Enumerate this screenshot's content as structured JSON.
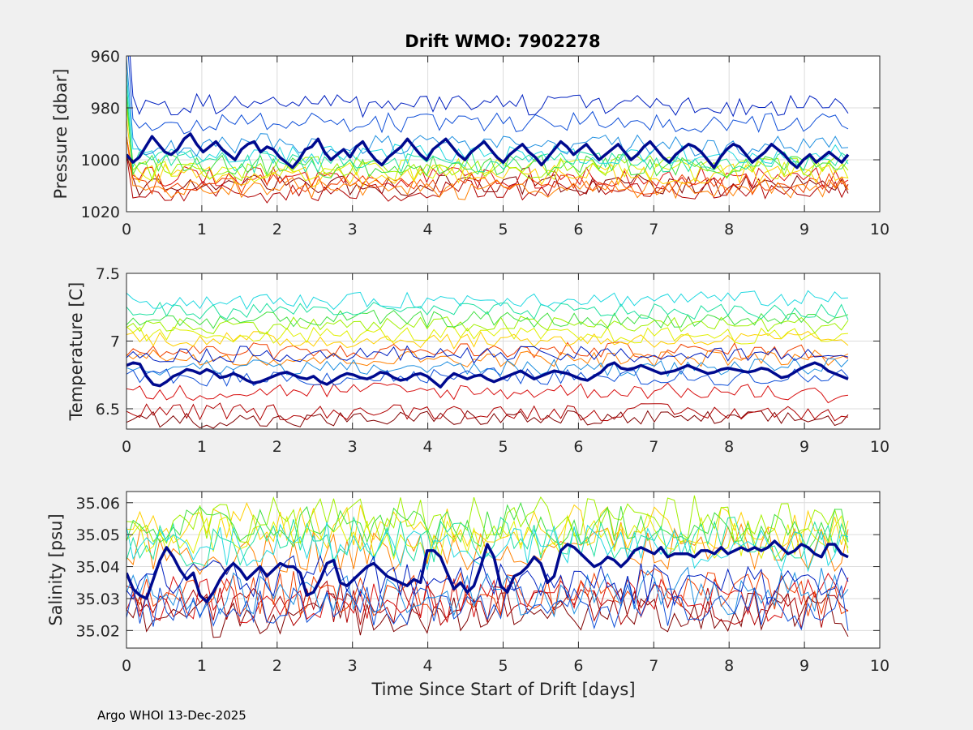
{
  "title": "Drift WMO: 7902278",
  "footer": "Argo WHOI 13-Dec-2025",
  "colors": {
    "background": "#f0f0f0",
    "axes": "#ffffff",
    "grid": "#dcdcdc",
    "mean_line": "#000a8f",
    "series_palette": [
      "#800000",
      "#b00000",
      "#d81010",
      "#f04000",
      "#ff8000",
      "#ffd000",
      "#e0f000",
      "#a0f000",
      "#40e040",
      "#20e0a0",
      "#20d8e0",
      "#2090e0",
      "#1050d8",
      "#0020c0"
    ]
  },
  "chart_data": [
    {
      "type": "line",
      "name": "pressure",
      "ylabel": "Pressure [dbar]",
      "xlabel": "",
      "x_range": [
        0,
        10
      ],
      "y_range": [
        960,
        1020
      ],
      "y_reversed": true,
      "x_ticks": [
        "0",
        "1",
        "2",
        "3",
        "4",
        "5",
        "6",
        "7",
        "8",
        "9",
        "10"
      ],
      "y_ticks": [
        "960",
        "980",
        "1000",
        "1020"
      ],
      "grid": true,
      "series_bands": [
        1010,
        1012,
        1007,
        1009,
        1011,
        1006,
        1004,
        1003,
        1002,
        1000,
        998,
        995,
        986,
        979
      ],
      "noise": 4,
      "mean_series": [
        998,
        1001,
        999,
        995,
        991,
        994,
        997,
        998,
        996,
        992,
        990,
        994,
        997,
        995,
        993,
        996,
        998,
        1000,
        996,
        994,
        993,
        997,
        995,
        996,
        999,
        1001,
        1003,
        1000,
        996,
        995,
        992,
        997,
        1000,
        998,
        996,
        999,
        995,
        993,
        997,
        1000,
        1002,
        999,
        997,
        995,
        992,
        995,
        998,
        1000,
        996,
        994,
        992,
        995,
        998,
        1000,
        997,
        995,
        993,
        996,
        999,
        1001,
        998,
        996,
        994,
        997,
        999,
        1002,
        999,
        996,
        993,
        995,
        998,
        996,
        994,
        997,
        1000,
        998,
        996,
        994,
        997,
        1000,
        998,
        995,
        993,
        996,
        999,
        1001,
        998,
        996,
        994,
        995,
        997,
        1000,
        1003,
        999,
        996,
        994,
        995,
        998,
        1001,
        999,
        997,
        994,
        996,
        998,
        1001,
        1003,
        1000,
        998,
        1001,
        999,
        997,
        999,
        1001,
        998
      ]
    },
    {
      "type": "line",
      "name": "temperature",
      "ylabel": "Temperature [C]",
      "xlabel": "",
      "x_range": [
        0,
        10
      ],
      "y_range": [
        6.35,
        7.5
      ],
      "y_reversed": false,
      "x_ticks": [
        "0",
        "1",
        "2",
        "3",
        "4",
        "5",
        "6",
        "7",
        "8",
        "9",
        "10"
      ],
      "y_ticks": [
        "6.5",
        "7",
        "7.5"
      ],
      "grid": true,
      "series_bands": [
        6.42,
        6.48,
        6.62,
        6.92,
        6.88,
        7.02,
        7.05,
        7.12,
        7.15,
        7.22,
        7.3,
        6.8,
        6.74,
        6.9
      ],
      "noise": 0.06,
      "mean_series": [
        6.82,
        6.84,
        6.83,
        6.74,
        6.68,
        6.67,
        6.7,
        6.74,
        6.76,
        6.79,
        6.78,
        6.76,
        6.79,
        6.77,
        6.73,
        6.74,
        6.76,
        6.74,
        6.71,
        6.69,
        6.7,
        6.72,
        6.74,
        6.76,
        6.77,
        6.75,
        6.73,
        6.72,
        6.74,
        6.7,
        6.68,
        6.71,
        6.74,
        6.76,
        6.75,
        6.73,
        6.72,
        6.74,
        6.77,
        6.76,
        6.73,
        6.71,
        6.72,
        6.75,
        6.76,
        6.74,
        6.7,
        6.66,
        6.72,
        6.76,
        6.74,
        6.72,
        6.74,
        6.75,
        6.72,
        6.7,
        6.72,
        6.74,
        6.76,
        6.78,
        6.75,
        6.72,
        6.74,
        6.76,
        6.78,
        6.77,
        6.76,
        6.74,
        6.72,
        6.71,
        6.74,
        6.77,
        6.82,
        6.84,
        6.8,
        6.79,
        6.8,
        6.82,
        6.8,
        6.78,
        6.76,
        6.77,
        6.78,
        6.8,
        6.82,
        6.8,
        6.78,
        6.76,
        6.77,
        6.79,
        6.8,
        6.79,
        6.78,
        6.77,
        6.78,
        6.8,
        6.79,
        6.76,
        6.73,
        6.74,
        6.77,
        6.8,
        6.82,
        6.84,
        6.82,
        6.78,
        6.76,
        6.74,
        6.72
      ]
    },
    {
      "type": "line",
      "name": "salinity",
      "ylabel": "Salinity [psu]",
      "xlabel": "Time Since Start of Drift [days]",
      "x_range": [
        0,
        10
      ],
      "y_range": [
        35.0145,
        35.0635
      ],
      "y_reversed": false,
      "x_ticks": [
        "0",
        "1",
        "2",
        "3",
        "4",
        "5",
        "6",
        "7",
        "8",
        "9",
        "10"
      ],
      "y_ticks": [
        "35.02",
        "35.03",
        "35.04",
        "35.05",
        "35.06"
      ],
      "grid": true,
      "series_bands": [
        35.025,
        35.028,
        35.03,
        35.032,
        35.045,
        35.052,
        35.05,
        35.054,
        35.052,
        35.048,
        35.046,
        35.032,
        35.028,
        35.036
      ],
      "noise": 0.007,
      "mean_series": [
        35.038,
        35.033,
        35.031,
        35.03,
        35.036,
        35.042,
        35.046,
        35.043,
        35.039,
        35.036,
        35.038,
        35.031,
        35.029,
        35.032,
        35.036,
        35.039,
        35.041,
        35.039,
        35.036,
        35.038,
        35.04,
        35.037,
        35.039,
        35.041,
        35.04,
        35.04,
        35.038,
        35.031,
        35.032,
        35.036,
        35.041,
        35.042,
        35.035,
        35.034,
        35.036,
        35.038,
        35.04,
        35.041,
        35.039,
        35.037,
        35.036,
        35.035,
        35.034,
        35.036,
        35.035,
        35.045,
        35.045,
        35.043,
        35.038,
        35.033,
        35.035,
        35.032,
        35.034,
        35.04,
        35.047,
        35.043,
        35.034,
        35.032,
        35.037,
        35.038,
        35.04,
        35.043,
        35.041,
        35.035,
        35.037,
        35.045,
        35.047,
        35.046,
        35.044,
        35.042,
        35.04,
        35.041,
        35.043,
        35.042,
        35.04,
        35.042,
        35.045,
        35.046,
        35.045,
        35.044,
        35.046,
        35.043,
        35.044,
        35.044,
        35.044,
        35.043,
        35.045,
        35.045,
        35.044,
        35.046,
        35.044,
        35.045,
        35.046,
        35.045,
        35.046,
        35.045,
        35.046,
        35.048,
        35.046,
        35.044,
        35.045,
        35.047,
        35.046,
        35.044,
        35.043,
        35.047,
        35.047,
        35.044,
        35.043
      ]
    }
  ]
}
